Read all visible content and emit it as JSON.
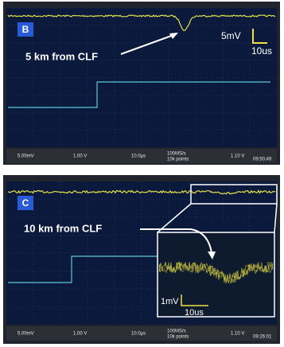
{
  "panels": [
    {
      "label": "B",
      "caption": "5 km from CLF",
      "scale_v": "5mV",
      "scale_t": "10us",
      "status": [
        "5.00mV",
        "1.00 V",
        "10.0µs",
        "100MS/s",
        "10k points",
        "1.10 V",
        "09:50:49"
      ]
    },
    {
      "label": "C",
      "caption": "10 km from CLF",
      "scale_v": "1mV",
      "scale_t": "10us",
      "status": [
        "5.00mV",
        "1.00 V",
        "10.0µs",
        "100MS/s",
        "10k points",
        "1.10 V",
        "09:26:01"
      ]
    }
  ]
}
